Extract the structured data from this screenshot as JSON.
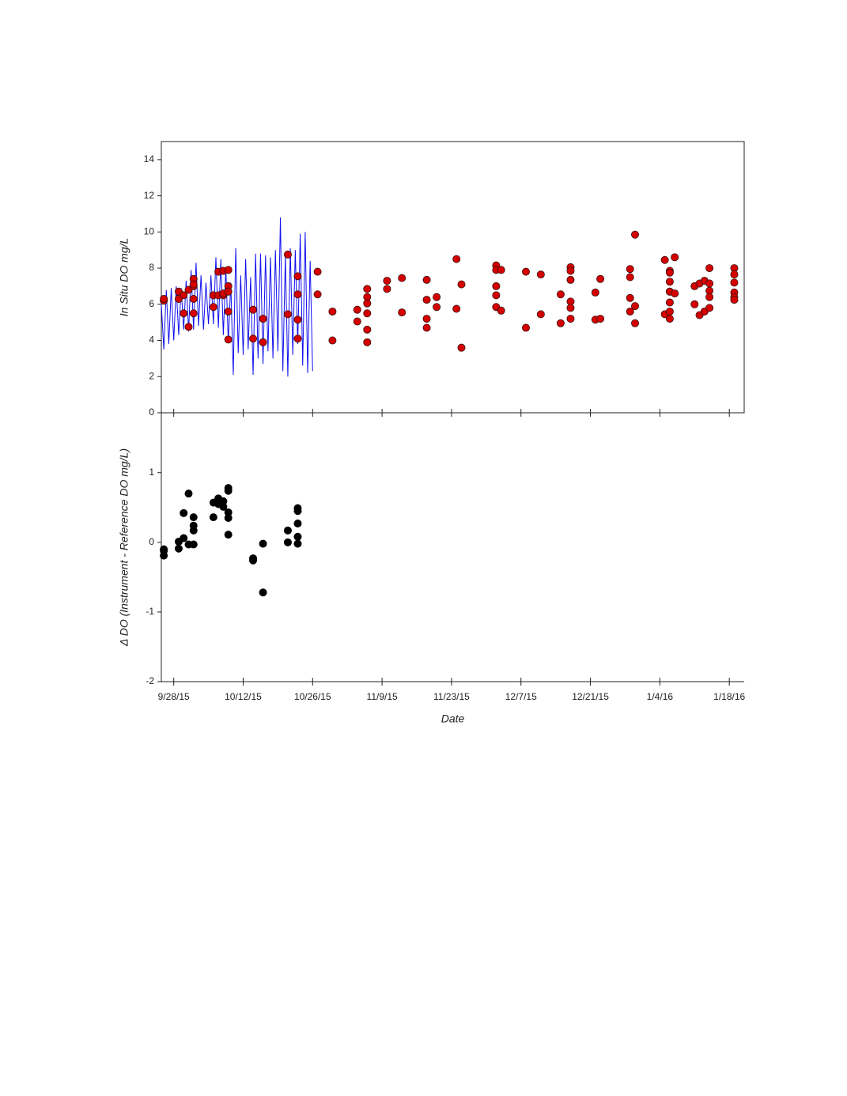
{
  "chart_data": [
    {
      "type": "line",
      "ylabel": "In Situ DO mg/L",
      "ylim": [
        0,
        15
      ],
      "yticks": [
        0,
        2,
        4,
        6,
        8,
        10,
        12,
        14
      ],
      "series": [
        {
          "type": "line",
          "color": "#1010ee",
          "x": [
            "2015-09-25T12:00",
            "2015-09-26T00:00",
            "2015-09-26T12:00",
            "2015-09-27T00:00",
            "2015-09-27T12:00",
            "2015-09-28T00:00",
            "2015-09-28T12:00",
            "2015-09-29T00:00",
            "2015-09-29T12:00",
            "2015-09-30T00:00",
            "2015-09-30T12:00",
            "2015-10-01T00:00",
            "2015-10-01T12:00",
            "2015-10-02T00:00",
            "2015-10-02T12:00",
            "2015-10-03T00:00",
            "2015-10-03T12:00",
            "2015-10-04T00:00",
            "2015-10-04T12:00",
            "2015-10-05T00:00",
            "2015-10-05T12:00",
            "2015-10-06T00:00",
            "2015-10-06T12:00",
            "2015-10-07T00:00",
            "2015-10-07T12:00",
            "2015-10-08T00:00",
            "2015-10-08T12:00",
            "2015-10-09T00:00",
            "2015-10-09T12:00",
            "2015-10-10T00:00",
            "2015-10-10T12:00",
            "2015-10-11T00:00",
            "2015-10-11T12:00",
            "2015-10-12T00:00",
            "2015-10-12T12:00",
            "2015-10-13T00:00",
            "2015-10-13T12:00",
            "2015-10-14T00:00",
            "2015-10-14T12:00",
            "2015-10-15T00:00",
            "2015-10-15T12:00",
            "2015-10-16T00:00",
            "2015-10-16T12:00",
            "2015-10-17T00:00",
            "2015-10-17T12:00",
            "2015-10-18T00:00",
            "2015-10-18T12:00",
            "2015-10-19T00:00",
            "2015-10-19T12:00",
            "2015-10-20T00:00",
            "2015-10-20T12:00",
            "2015-10-21T00:00",
            "2015-10-21T12:00",
            "2015-10-22T00:00",
            "2015-10-22T12:00",
            "2015-10-23T00:00",
            "2015-10-23T12:00",
            "2015-10-24T00:00",
            "2015-10-24T12:00",
            "2015-10-25T00:00",
            "2015-10-25T12:00",
            "2015-10-26T00:00"
          ],
          "values": [
            6.0,
            3.5,
            6.8,
            3.8,
            6.9,
            4.0,
            7.0,
            4.3,
            6.9,
            4.6,
            7.3,
            4.5,
            7.9,
            4.6,
            8.3,
            4.8,
            7.6,
            4.6,
            7.2,
            4.9,
            7.6,
            4.9,
            8.6,
            4.7,
            8.5,
            4.3,
            8.0,
            3.9,
            7.2,
            2.1,
            9.1,
            3.3,
            7.6,
            3.2,
            8.5,
            3.5,
            7.5,
            2.1,
            8.8,
            3.0,
            8.8,
            2.7,
            8.7,
            3.4,
            8.6,
            3.0,
            9.0,
            3.4,
            10.8,
            2.3,
            8.7,
            2.0,
            9.1,
            3.2,
            9.0,
            3.8,
            9.9,
            2.6,
            10.0,
            2.2,
            8.4,
            2.3
          ]
        },
        {
          "type": "scatter",
          "color": "#d40000",
          "edgecolor": "#3a1010",
          "x": [
            "2015-09-26",
            "2015-09-26",
            "2015-09-29",
            "2015-09-29",
            "2015-09-30",
            "2015-09-30",
            "2015-10-01",
            "2015-10-01",
            "2015-10-02",
            "2015-10-02",
            "2015-10-02",
            "2015-10-02",
            "2015-10-02",
            "2015-10-06",
            "2015-10-06",
            "2015-10-07",
            "2015-10-07",
            "2015-10-08",
            "2015-10-08",
            "2015-10-08",
            "2015-10-09",
            "2015-10-09",
            "2015-10-09",
            "2015-10-09",
            "2015-10-09",
            "2015-10-14",
            "2015-10-14",
            "2015-10-16",
            "2015-10-16",
            "2015-10-21",
            "2015-10-21",
            "2015-10-23",
            "2015-10-23",
            "2015-10-23",
            "2015-10-23",
            "2015-10-27",
            "2015-10-27",
            "2015-10-30",
            "2015-10-30",
            "2015-11-04",
            "2015-11-04",
            "2015-11-06",
            "2015-11-06",
            "2015-11-06",
            "2015-11-06",
            "2015-11-06",
            "2015-11-06",
            "2015-11-10",
            "2015-11-10",
            "2015-11-13",
            "2015-11-13",
            "2015-11-18",
            "2015-11-18",
            "2015-11-18",
            "2015-11-18",
            "2015-11-20",
            "2015-11-20",
            "2015-11-24",
            "2015-11-24",
            "2015-11-25",
            "2015-11-25",
            "2015-12-02",
            "2015-12-02",
            "2015-12-02",
            "2015-12-02",
            "2015-12-02",
            "2015-12-03",
            "2015-12-03",
            "2015-12-08",
            "2015-12-08",
            "2015-12-11",
            "2015-12-11",
            "2015-12-15",
            "2015-12-15",
            "2015-12-17",
            "2015-12-17",
            "2015-12-17",
            "2015-12-17",
            "2015-12-17",
            "2015-12-17",
            "2015-12-22",
            "2015-12-22",
            "2015-12-23",
            "2015-12-23",
            "2015-12-29",
            "2015-12-29",
            "2015-12-29",
            "2015-12-29",
            "2015-12-30",
            "2015-12-30",
            "2015-12-30",
            "2016-01-05",
            "2016-01-05",
            "2016-01-06",
            "2016-01-06",
            "2016-01-06",
            "2016-01-06",
            "2016-01-06",
            "2016-01-06",
            "2016-01-06",
            "2016-01-06",
            "2016-01-07",
            "2016-01-07",
            "2016-01-11",
            "2016-01-11",
            "2016-01-12",
            "2016-01-12",
            "2016-01-13",
            "2016-01-13",
            "2016-01-14",
            "2016-01-14",
            "2016-01-14",
            "2016-01-14",
            "2016-01-14",
            "2016-01-19",
            "2016-01-19",
            "2016-01-19",
            "2016-01-19",
            "2016-01-19",
            "2016-01-19"
          ],
          "values": [
            6.2,
            6.3,
            6.7,
            6.3,
            5.5,
            6.5,
            4.75,
            6.8,
            7.0,
            6.3,
            5.5,
            7.4,
            7.1,
            5.85,
            6.5,
            6.5,
            7.8,
            6.5,
            7.85,
            6.6,
            5.6,
            4.05,
            7.9,
            7.0,
            6.7,
            5.7,
            4.1,
            5.2,
            3.9,
            5.45,
            8.75,
            7.55,
            6.55,
            5.15,
            4.1,
            7.8,
            6.55,
            5.6,
            4.0,
            5.7,
            5.05,
            6.85,
            6.4,
            6.05,
            5.5,
            4.6,
            3.9,
            7.3,
            6.85,
            7.45,
            5.55,
            7.35,
            6.25,
            5.2,
            4.7,
            6.4,
            5.85,
            8.5,
            5.75,
            7.1,
            3.6,
            8.15,
            7.9,
            7.0,
            6.5,
            5.85,
            7.9,
            5.65,
            7.8,
            4.7,
            7.65,
            5.45,
            6.55,
            4.95,
            8.05,
            7.85,
            7.35,
            6.15,
            5.8,
            5.2,
            6.65,
            5.15,
            7.4,
            5.2,
            7.95,
            7.5,
            6.35,
            5.6,
            9.85,
            5.9,
            4.95,
            8.45,
            5.45,
            7.85,
            6.7,
            7.75,
            7.25,
            6.7,
            6.1,
            5.6,
            5.2,
            8.6,
            6.6,
            7.0,
            6.0,
            7.15,
            5.4,
            7.3,
            5.6,
            8.0,
            7.15,
            6.75,
            6.4,
            5.8,
            8.0,
            7.65,
            7.2,
            6.65,
            6.4,
            6.25
          ]
        }
      ]
    },
    {
      "type": "scatter",
      "ylabel": "Δ DO (Instrument - Reference DO mg/L)",
      "xlabel": "Date",
      "ylim": [
        -2,
        1.86
      ],
      "yticks": [
        -2,
        -1,
        0,
        1
      ],
      "xlim": [
        "2015-09-25T12:00",
        "2016-01-21T00:00"
      ],
      "xticks": [
        {
          "value": "2015-09-28",
          "label": "9/28/15"
        },
        {
          "value": "2015-10-12",
          "label": "10/12/15"
        },
        {
          "value": "2015-10-26",
          "label": "10/26/15"
        },
        {
          "value": "2015-11-09",
          "label": "11/9/15"
        },
        {
          "value": "2015-11-23",
          "label": "11/23/15"
        },
        {
          "value": "2015-12-07",
          "label": "12/7/15"
        },
        {
          "value": "2015-12-21",
          "label": "12/21/15"
        },
        {
          "value": "2016-01-04",
          "label": "1/4/16"
        },
        {
          "value": "2016-01-18",
          "label": "1/18/16"
        }
      ],
      "series": [
        {
          "type": "scatter",
          "color": "#000000",
          "edgecolor": "#000000",
          "x": [
            "2015-09-26",
            "2015-09-26",
            "2015-09-26",
            "2015-09-29",
            "2015-09-29",
            "2015-09-30",
            "2015-09-30",
            "2015-10-01",
            "2015-10-01",
            "2015-10-02",
            "2015-10-02",
            "2015-10-02",
            "2015-10-02",
            "2015-10-06",
            "2015-10-06",
            "2015-10-07",
            "2015-10-07",
            "2015-10-08",
            "2015-10-08",
            "2015-10-09",
            "2015-10-09",
            "2015-10-09",
            "2015-10-09",
            "2015-10-09",
            "2015-10-14",
            "2015-10-14",
            "2015-10-16",
            "2015-10-16",
            "2015-10-21",
            "2015-10-21",
            "2015-10-23",
            "2015-10-23",
            "2015-10-23",
            "2015-10-23",
            "2015-10-23"
          ],
          "values": [
            -0.12,
            -0.19,
            -0.1,
            0.01,
            -0.09,
            0.06,
            0.42,
            0.7,
            -0.03,
            0.36,
            0.24,
            0.17,
            -0.03,
            0.36,
            0.57,
            0.63,
            0.55,
            0.59,
            0.51,
            0.78,
            0.74,
            0.43,
            0.35,
            0.11,
            -0.23,
            -0.26,
            -0.02,
            -0.72,
            0.17,
            0,
            0.49,
            0.45,
            0.27,
            0.08,
            -0.02
          ]
        }
      ]
    }
  ]
}
